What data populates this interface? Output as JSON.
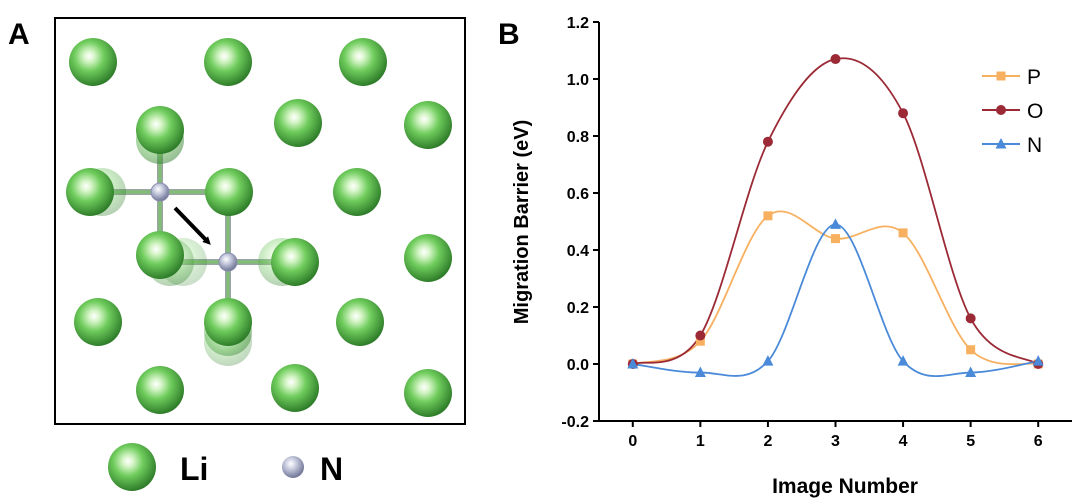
{
  "panel_a": {
    "label": "A",
    "legend": [
      {
        "symbol": "Li",
        "color": "#5cbf4e"
      },
      {
        "symbol": "N",
        "color": "#aab0cc"
      }
    ]
  },
  "panel_b": {
    "label": "B"
  },
  "chart_data": {
    "type": "line",
    "xlabel": "Image Number",
    "ylabel": "Migration Barrier (eV)",
    "x": [
      0,
      1,
      2,
      3,
      4,
      5,
      6
    ],
    "xticks": [
      "0",
      "1",
      "2",
      "3",
      "4",
      "5",
      "6"
    ],
    "xlim": [
      -0.5,
      6.5
    ],
    "ylim": [
      -0.2,
      1.2
    ],
    "yticks": [
      "-0.2",
      "0.0",
      "0.2",
      "0.4",
      "0.6",
      "0.8",
      "1.0",
      "1.2"
    ],
    "legend_position": "top-right",
    "series": [
      {
        "name": "P",
        "color": "#f7b060",
        "marker": "square",
        "values": [
          0.0,
          0.08,
          0.52,
          0.44,
          0.46,
          0.05,
          0.0
        ]
      },
      {
        "name": "O",
        "color": "#9b2a36",
        "marker": "circle",
        "values": [
          0.0,
          0.1,
          0.78,
          1.07,
          0.88,
          0.16,
          0.0
        ]
      },
      {
        "name": "N",
        "color": "#4a8ad8",
        "marker": "triangle",
        "values": [
          0.0,
          -0.03,
          0.01,
          0.49,
          0.01,
          -0.03,
          0.01
        ]
      }
    ]
  }
}
